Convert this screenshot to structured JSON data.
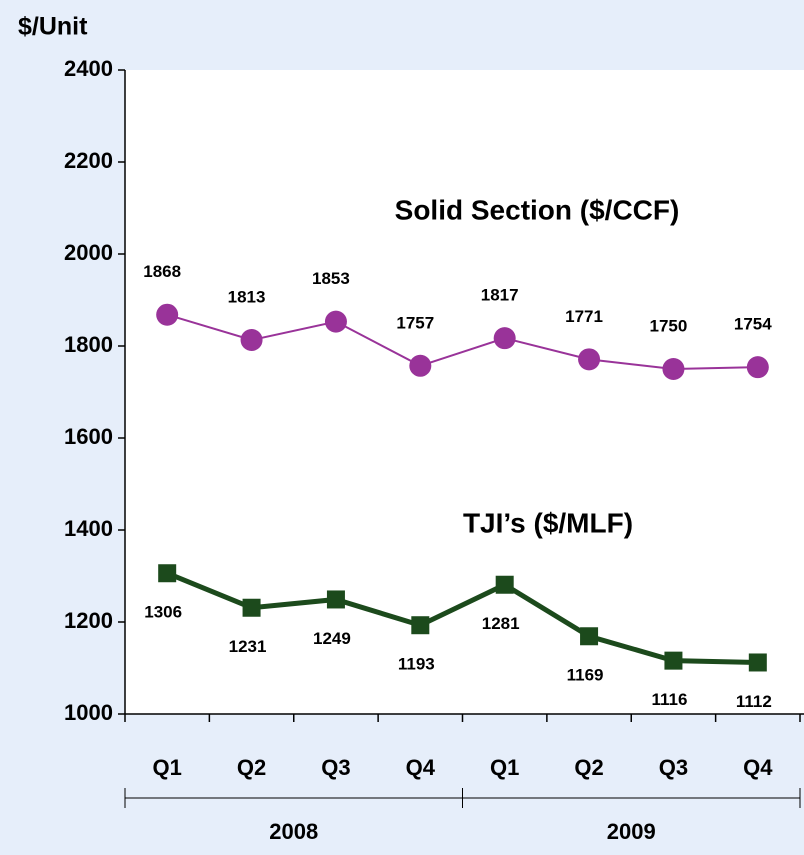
{
  "chart_data": {
    "type": "line",
    "y_label": "$/Unit",
    "categories": [
      "Q1",
      "Q2",
      "Q3",
      "Q4",
      "Q1",
      "Q2",
      "Q3",
      "Q4"
    ],
    "groups": [
      "2008",
      "2009"
    ],
    "series": [
      {
        "name": "Solid Section ($/CCF)",
        "color": "#993399",
        "marker": "circle",
        "values": [
          1868,
          1813,
          1853,
          1757,
          1817,
          1771,
          1750,
          1754
        ]
      },
      {
        "name": "TJI’s ($/MLF)",
        "color": "#1c4a1c",
        "marker": "square",
        "values": [
          1306,
          1231,
          1249,
          1193,
          1281,
          1169,
          1116,
          1112
        ]
      }
    ],
    "ylim": [
      1000,
      2400
    ],
    "yticks": [
      1000,
      1200,
      1400,
      1600,
      1800,
      2000,
      2200,
      2400
    ],
    "grid": false
  }
}
